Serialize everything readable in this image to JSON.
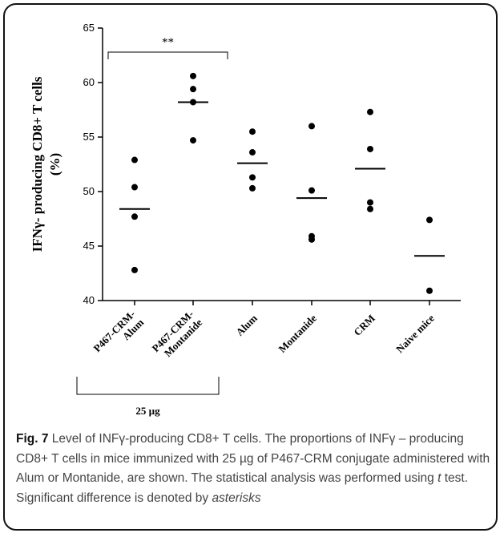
{
  "chart_data": {
    "type": "scatter",
    "ylabel_line1": "IFNγ- producing CD8+ T cells",
    "ylabel_line2": "(%)",
    "ylim": [
      40,
      65
    ],
    "yticks": [
      "40",
      "45",
      "50",
      "55",
      "60",
      "65"
    ],
    "categories": [
      [
        "P467-CRM-",
        "Alum"
      ],
      [
        "P467-CRM-",
        "Montanide"
      ],
      [
        "Alum"
      ],
      [
        "Montanide"
      ],
      [
        "CRM"
      ],
      [
        "Naive mice"
      ]
    ],
    "series": [
      {
        "points": [
          52.9,
          50.4,
          47.7,
          42.8
        ],
        "mean": 48.4
      },
      {
        "points": [
          60.6,
          59.4,
          58.2,
          54.7
        ],
        "mean": 58.2
      },
      {
        "points": [
          55.5,
          53.6,
          51.3,
          50.3
        ],
        "mean": 52.6
      },
      {
        "points": [
          56.0,
          50.1,
          45.9,
          45.6
        ],
        "mean": 49.4
      },
      {
        "points": [
          57.3,
          53.9,
          49.0,
          48.4
        ],
        "mean": 52.1
      },
      {
        "points": [
          47.4,
          40.9
        ],
        "mean": 44.1
      }
    ],
    "significance": {
      "label": "**",
      "groups": [
        0,
        1
      ]
    },
    "group_bracket": {
      "label": "25 µg",
      "groups": [
        0,
        1
      ]
    },
    "grid": false,
    "legend": "none"
  },
  "caption": {
    "fig_label": "Fig. 7",
    "part1": " Level of INFγ-producing CD8+ T cells. The proportions of INFγ – producing CD8+ T cells in mice immunized with 25 µg of P467-CRM conjugate administered with Alum or Montanide, are shown. The statistical analysis was performed using ",
    "italic1": "t",
    "part2": " test. Significant difference is denoted by ",
    "italic2": "asterisks"
  }
}
